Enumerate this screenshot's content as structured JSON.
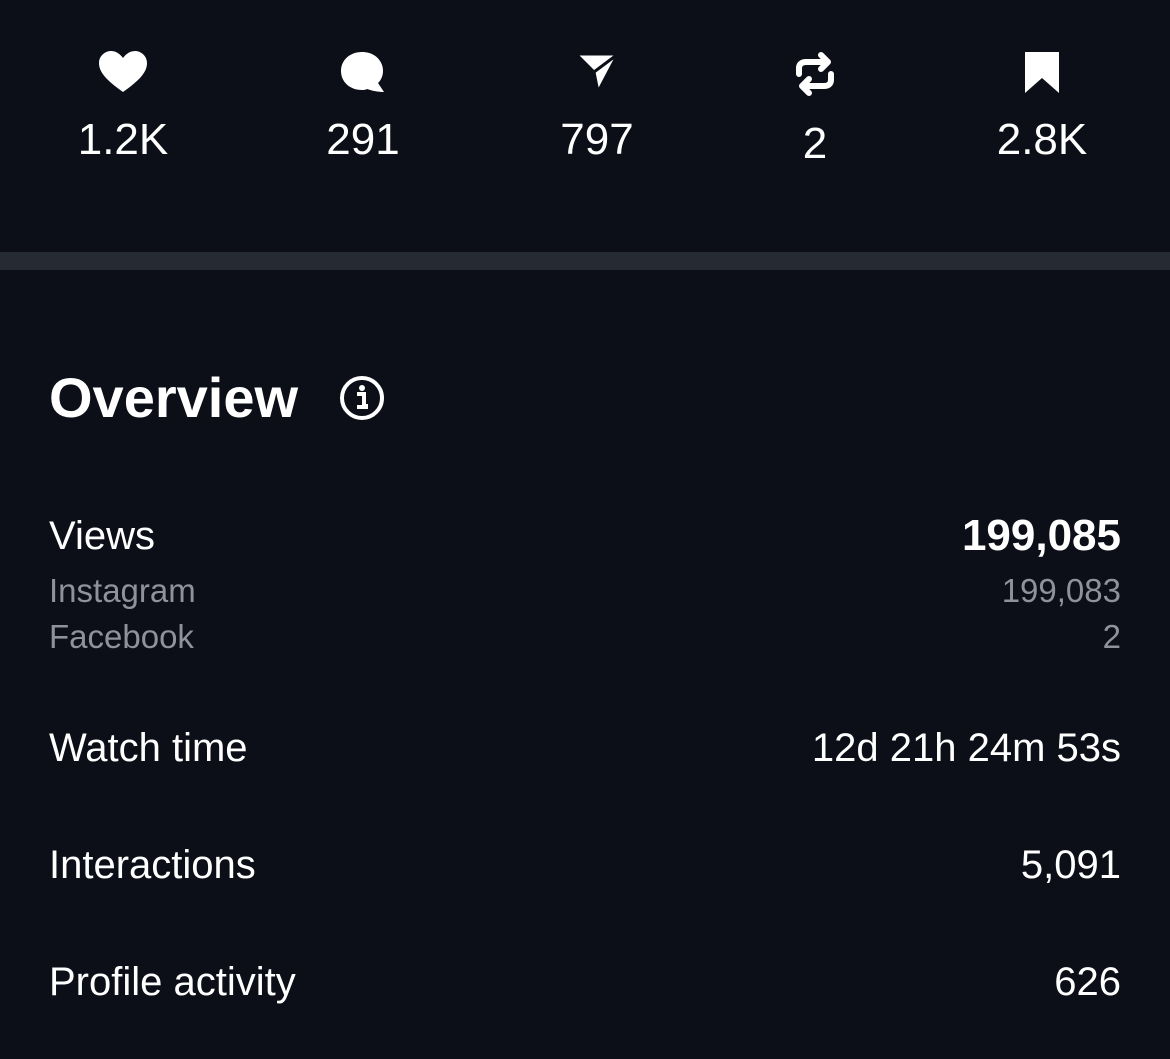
{
  "stats": [
    {
      "name": "likes",
      "value": "1.2K"
    },
    {
      "name": "comments",
      "value": "291"
    },
    {
      "name": "shares",
      "value": "797"
    },
    {
      "name": "reposts",
      "value": "2"
    },
    {
      "name": "saves",
      "value": "2.8K"
    }
  ],
  "overview": {
    "title": "Overview",
    "views": {
      "label": "Views",
      "value": "199,085",
      "breakdown": [
        {
          "label": "Instagram",
          "value": "199,083"
        },
        {
          "label": "Facebook",
          "value": "2"
        }
      ]
    },
    "rows": [
      {
        "label": "Watch time",
        "value": "12d 21h 24m 53s"
      },
      {
        "label": "Interactions",
        "value": "5,091"
      },
      {
        "label": "Profile activity",
        "value": "626"
      }
    ]
  }
}
